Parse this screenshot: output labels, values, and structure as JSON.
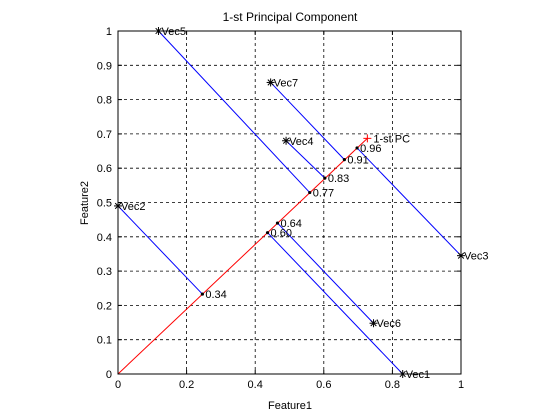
{
  "chart_data": {
    "type": "scatter",
    "title": "1-st Principal Component",
    "xlabel": "Feature1",
    "ylabel": "Feature2",
    "xlim": [
      0,
      1
    ],
    "ylim": [
      0,
      1
    ],
    "xticks": [
      "0",
      "0.2",
      "0.4",
      "0.6",
      "0.8",
      "1"
    ],
    "yticks": [
      "0",
      "0.1",
      "0.2",
      "0.3",
      "0.4",
      "0.5",
      "0.6",
      "0.7",
      "0.8",
      "0.9",
      "1"
    ],
    "grid": true,
    "grid_style": "dashed",
    "pc_line": {
      "label": "1-st PC",
      "color": "#ff0000",
      "from": [
        0,
        0
      ],
      "to": [
        0.727,
        0.687
      ]
    },
    "vectors": [
      {
        "name": "Vec1",
        "x": 0.83,
        "y": 0.0,
        "proj": "0.60",
        "px": 0.436,
        "py": 0.412
      },
      {
        "name": "Vec2",
        "x": 0.0,
        "y": 0.49,
        "proj": "0.34",
        "px": 0.246,
        "py": 0.233
      },
      {
        "name": "Vec3",
        "x": 1.0,
        "y": 0.345,
        "proj": "0.96",
        "px": 0.697,
        "py": 0.659
      },
      {
        "name": "Vec4",
        "x": 0.49,
        "y": 0.68,
        "proj": "0.83",
        "px": 0.603,
        "py": 0.571
      },
      {
        "name": "Vec5",
        "x": 0.118,
        "y": 1.0,
        "proj": "0.77",
        "px": 0.559,
        "py": 0.529
      },
      {
        "name": "Vec6",
        "x": 0.745,
        "y": 0.148,
        "proj": "0.64",
        "px": 0.465,
        "py": 0.44
      },
      {
        "name": "Vec7",
        "x": 0.445,
        "y": 0.85,
        "proj": "0.91",
        "px": 0.66,
        "py": 0.625
      }
    ],
    "projection_color": "#0000ff",
    "marker": "*"
  }
}
